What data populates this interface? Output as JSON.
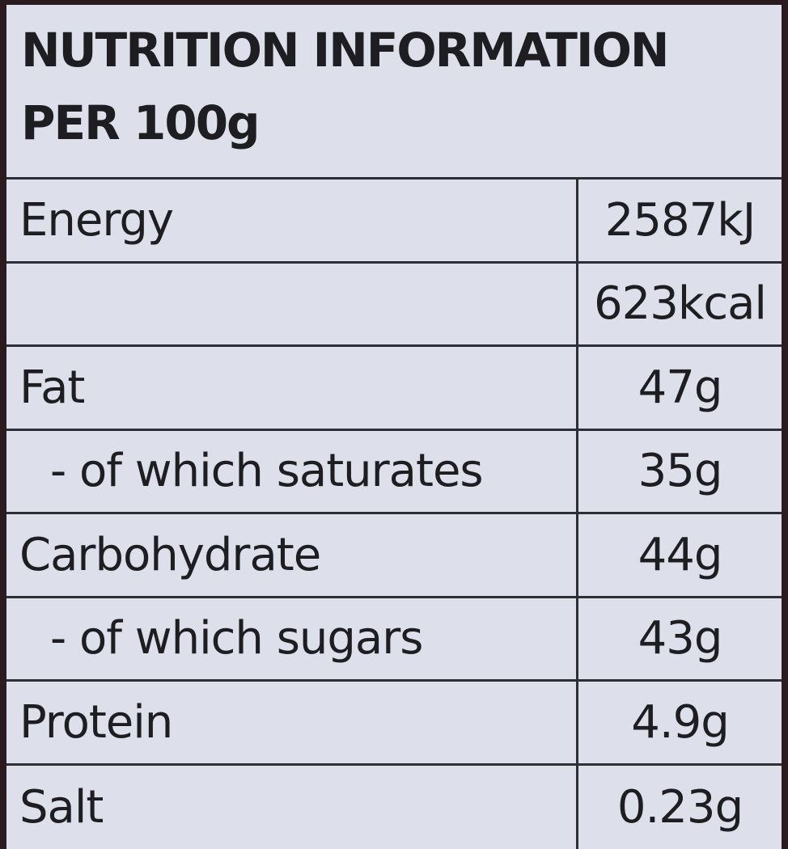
{
  "header": {
    "title": "NUTRITION INFORMATION",
    "subtitle": "PER 100g"
  },
  "table": {
    "rows": [
      {
        "label": "Energy",
        "value": "2587kJ"
      },
      {
        "value": "623kcal"
      },
      {
        "label": "Fat",
        "value": "47g"
      },
      {
        "label": "- of which saturates",
        "value": "35g"
      },
      {
        "label": "Carbohydrate",
        "value": "44g"
      },
      {
        "label": "- of which sugars",
        "value": "43g"
      },
      {
        "label": "Protein",
        "value": "4.9g"
      },
      {
        "label": "Salt",
        "value": "0.23g"
      }
    ]
  }
}
